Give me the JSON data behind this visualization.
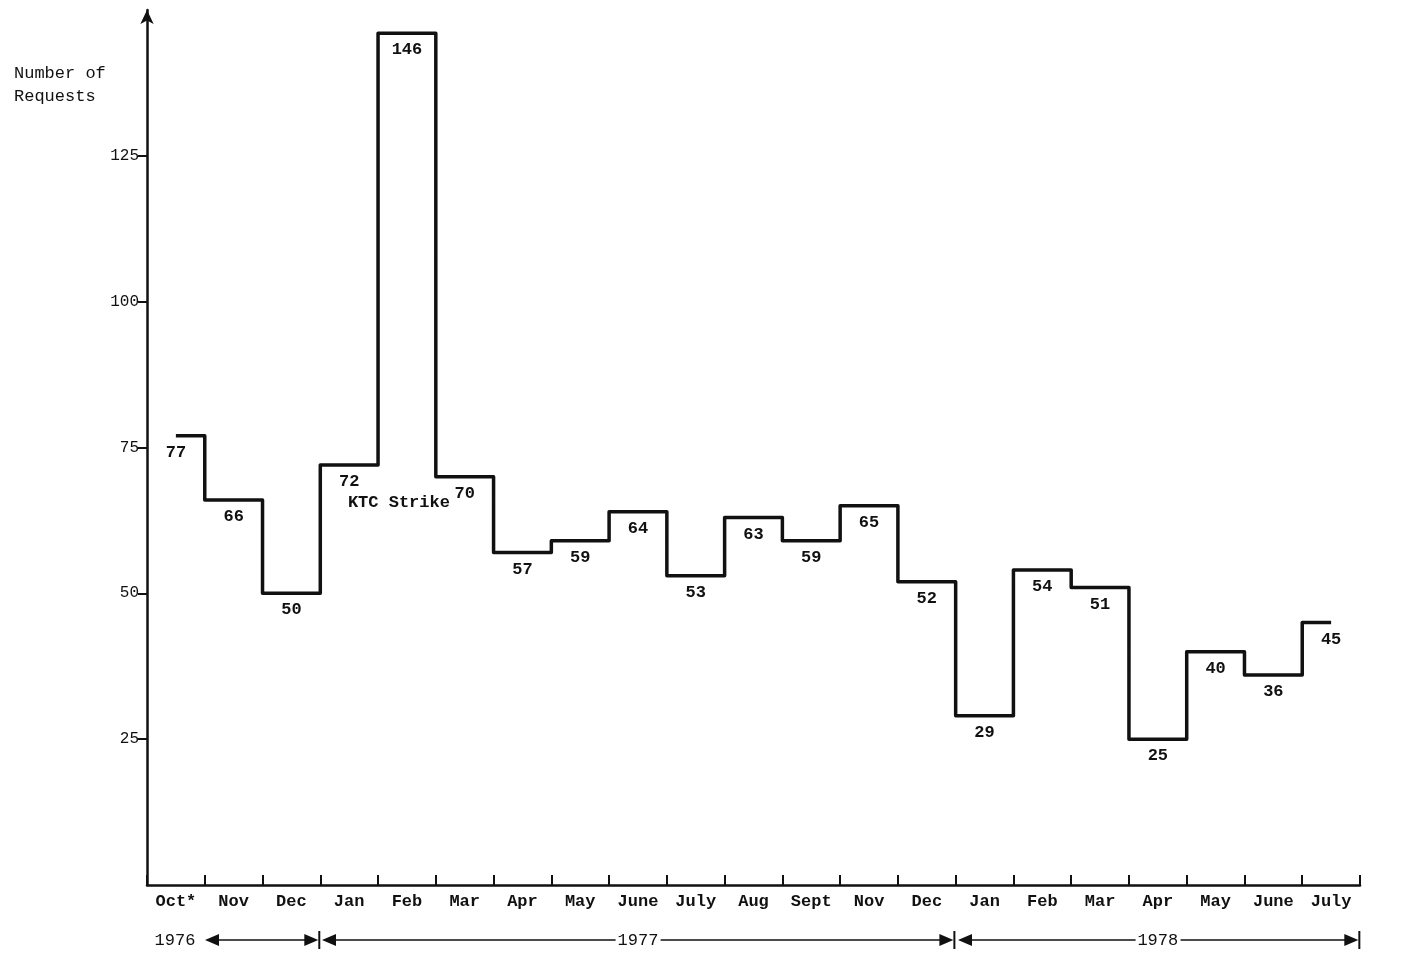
{
  "chart_data": {
    "type": "step",
    "ylabel": "Number of Requests",
    "categories": [
      "Oct*",
      "Nov",
      "Dec",
      "Jan",
      "Feb",
      "Mar",
      "Apr",
      "May",
      "June",
      "July",
      "Aug",
      "Sept",
      "Nov",
      "Dec",
      "Jan",
      "Feb",
      "Mar",
      "Apr",
      "May",
      "June",
      "July"
    ],
    "values": [
      77,
      66,
      50,
      72,
      146,
      70,
      57,
      59,
      64,
      53,
      63,
      59,
      65,
      52,
      29,
      54,
      51,
      25,
      40,
      36,
      45
    ],
    "color": "#111111",
    "ylim": [
      0,
      150
    ],
    "yticks": [
      25,
      50,
      75,
      100,
      125
    ],
    "grid": false,
    "marker": "none",
    "line_style": "solid",
    "data_labels": true,
    "annotations": [
      "KTC Strike",
      "1976",
      "1977",
      "1978"
    ]
  }
}
